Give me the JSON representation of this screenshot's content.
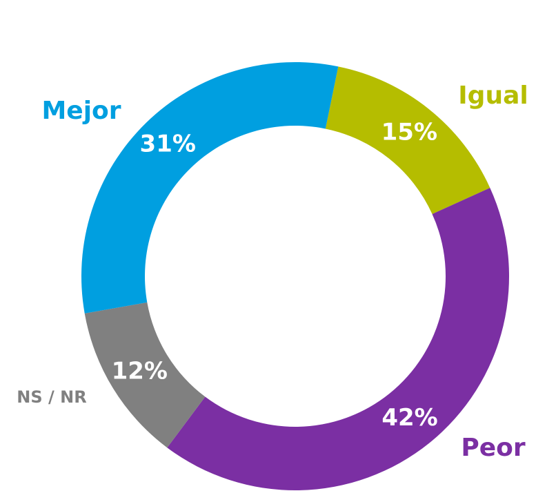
{
  "chart_data": {
    "type": "donut",
    "categories": [
      "Igual",
      "Peor",
      "NS / NR",
      "Mejor"
    ],
    "values": [
      15,
      42,
      12,
      31
    ],
    "value_labels": [
      "15%",
      "42%",
      "12%",
      "31%"
    ],
    "colors": [
      "#b5bd00",
      "#7b2fa3",
      "#808080",
      "#009fe0"
    ]
  }
}
